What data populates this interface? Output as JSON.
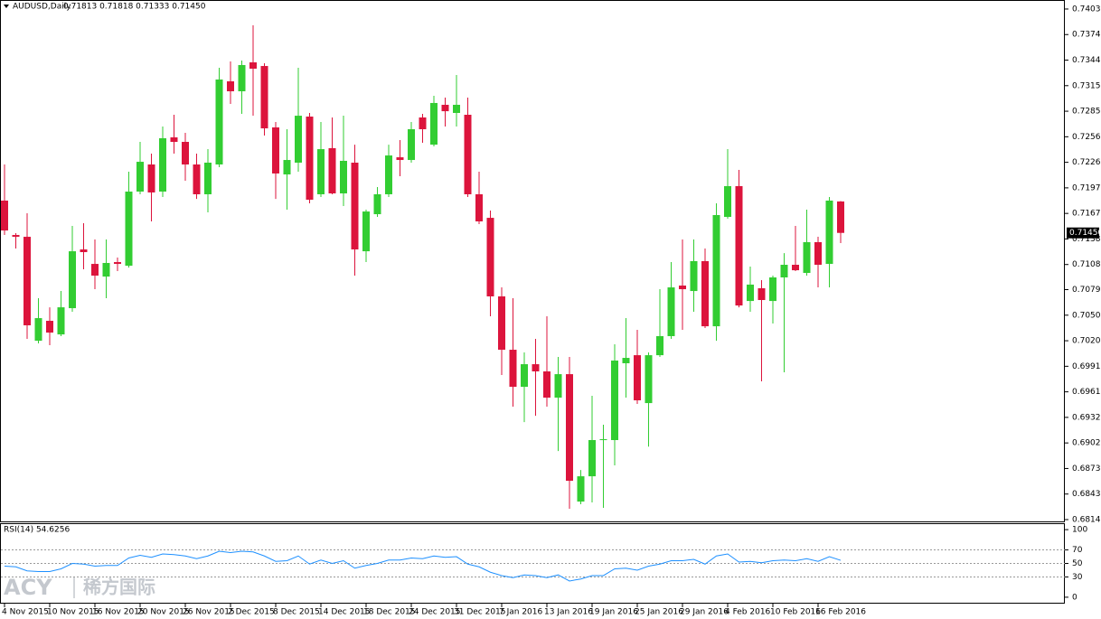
{
  "chart_data": [
    {
      "type": "candlestick",
      "title": "AUDUSD,Daily",
      "ohlc_text": "0.71813 0.71818 0.71333 0.71450",
      "categories": [
        "4 Nov 2015",
        null,
        null,
        null,
        "10 Nov 2015",
        null,
        null,
        null,
        "16 Nov 2015",
        null,
        null,
        null,
        "20 Nov 2015",
        null,
        null,
        null,
        "26 Nov 2015",
        null,
        null,
        null,
        "2 Dec 2015",
        null,
        null,
        null,
        "8 Dec 2015",
        null,
        null,
        null,
        "14 Dec 2015",
        null,
        null,
        null,
        "18 Dec 2015",
        null,
        null,
        null,
        "24 Dec 2015",
        null,
        null,
        null,
        "31 Dec 2015",
        null,
        null,
        null,
        "7 Jan 2016",
        null,
        null,
        null,
        "13 Jan 2016",
        null,
        null,
        null,
        "19 Jan 2016",
        null,
        null,
        null,
        "25 Jan 2016",
        null,
        null,
        null,
        "29 Jan 2016",
        null,
        null,
        null,
        "4 Feb 2016",
        null,
        null,
        null,
        "10 Feb 2016",
        null,
        null,
        null,
        "16 Feb 2016",
        null,
        null
      ],
      "open": [
        0.71823,
        0.71426,
        0.71405,
        0.70205,
        0.70435,
        0.70278,
        0.70581,
        0.71259,
        0.71092,
        0.70946,
        0.71113,
        0.71071,
        0.71927,
        0.7224,
        0.71927,
        0.72553,
        0.72501,
        0.7224,
        0.71896,
        0.7224,
        0.732,
        0.73085,
        0.73419,
        0.73377,
        0.72668,
        0.72125,
        0.72261,
        0.72793,
        0.71896,
        0.72428,
        0.71906,
        0.72261,
        0.71238,
        0.71666,
        0.71896,
        0.72323,
        0.72292,
        0.72783,
        0.72469,
        0.72929,
        0.72835,
        0.72814,
        0.71896,
        0.71624,
        0.70717,
        0.70101,
        0.69673,
        0.69934,
        0.69851,
        0.69548,
        0.69819,
        0.68348,
        0.6864,
        0.69058,
        0.69058,
        0.69945,
        0.70038,
        0.69485,
        0.70038,
        0.70258,
        0.70842,
        0.70779,
        0.71124,
        0.70372,
        0.71635,
        0.7199,
        0.70664,
        0.70811,
        0.70664,
        0.70936,
        0.71082,
        0.70988,
        0.71343,
        0.71092,
        0.71813
      ],
      "high": [
        0.7224,
        0.71447,
        0.71677,
        0.70696,
        0.70591,
        0.70779,
        0.71531,
        0.71562,
        0.71374,
        0.71374,
        0.71165,
        0.72157,
        0.72501,
        0.72365,
        0.72678,
        0.72814,
        0.72605,
        0.72365,
        0.72417,
        0.73356,
        0.73429,
        0.7344,
        0.73847,
        0.73409,
        0.7273,
        0.72647,
        0.73356,
        0.72835,
        0.7273,
        0.72783,
        0.72803,
        0.72469,
        0.71718,
        0.71979,
        0.72469,
        0.72522,
        0.7273,
        0.72824,
        0.73033,
        0.73012,
        0.73273,
        0.73012,
        0.72157,
        0.71708,
        0.70821,
        0.70696,
        0.7007,
        0.70226,
        0.70487,
        0.70018,
        0.70018,
        0.68713,
        0.69569,
        0.69235,
        0.70164,
        0.70466,
        0.70331,
        0.7007,
        0.708,
        0.71113,
        0.71374,
        0.71374,
        0.7127,
        0.71791,
        0.72417,
        0.72177,
        0.71061,
        0.70905,
        0.70957,
        0.71217,
        0.71531,
        0.71718,
        0.71405,
        0.71864,
        0.71818
      ],
      "low": [
        0.71426,
        0.7127,
        0.70226,
        0.70174,
        0.70153,
        0.70258,
        0.70539,
        0.7103,
        0.708,
        0.70696,
        0.71009,
        0.7105,
        0.71896,
        0.71583,
        0.71864,
        0.72365,
        0.72052,
        0.71843,
        0.71687,
        0.72209,
        0.72939,
        0.72824,
        0.72803,
        0.72574,
        0.71843,
        0.71718,
        0.72157,
        0.71791,
        0.71864,
        0.71896,
        0.7176,
        0.70957,
        0.71113,
        0.71635,
        0.71864,
        0.72104,
        0.72261,
        0.7249,
        0.72449,
        0.72678,
        0.72678,
        0.71864,
        0.71551,
        0.70487,
        0.69809,
        0.69444,
        0.69266,
        0.69339,
        0.69444,
        0.68931,
        0.68265,
        0.68317,
        0.68338,
        0.68275,
        0.68766,
        0.69548,
        0.69475,
        0.68983,
        0.70018,
        0.70226,
        0.70331,
        0.70539,
        0.70352,
        0.70205,
        0.71614,
        0.70591,
        0.70539,
        0.69736,
        0.70404,
        0.6984,
        0.71009,
        0.70957,
        0.70821,
        0.70821,
        0.71333
      ],
      "close": [
        0.71478,
        0.71405,
        0.70383,
        0.70466,
        0.70299,
        0.70591,
        0.71238,
        0.71228,
        0.70957,
        0.71103,
        0.71092,
        0.71927,
        0.72271,
        0.71917,
        0.72543,
        0.72501,
        0.7224,
        0.71896,
        0.72261,
        0.73221,
        0.73085,
        0.73388,
        0.73346,
        0.72657,
        0.72136,
        0.72292,
        0.72803,
        0.71833,
        0.72417,
        0.71906,
        0.72282,
        0.71259,
        0.71697,
        0.71896,
        0.72344,
        0.72292,
        0.72647,
        0.72647,
        0.7295,
        0.72855,
        0.72929,
        0.71896,
        0.71583,
        0.70717,
        0.70101,
        0.69673,
        0.69934,
        0.69851,
        0.69548,
        0.69819,
        0.68588,
        0.6864,
        0.69058,
        0.69068,
        0.69976,
        0.70007,
        0.69517,
        0.70038,
        0.70258,
        0.70821,
        0.708,
        0.71124,
        0.70372,
        0.71656,
        0.7199,
        0.70612,
        0.70853,
        0.70675,
        0.70936,
        0.71082,
        0.71019,
        0.71343,
        0.71082,
        0.71823,
        0.7145
      ],
      "up_color": "#32cd32",
      "down_color": "#dc143c",
      "ylim": [
        0.68119,
        0.74139
      ],
      "yticks": [
        0.74035,
        {
          "value": 0.7374,
          "label": "0.73740"
        },
        0.73445,
        {
          "value": 0.7315,
          "label": "0.73150"
        },
        0.72855,
        {
          "value": 0.7256,
          "label": "0.72560"
        },
        0.72265,
        {
          "value": 0.7197,
          "label": "0.71970"
        },
        0.71675,
        {
          "value": 0.7138,
          "label": "0.71380"
        },
        0.71085,
        0.70795,
        {
          "value": 0.705,
          "label": "0.70500"
        },
        0.70205,
        {
          "value": 0.6991,
          "label": "0.69910"
        },
        0.69615,
        {
          "value": 0.6932,
          "label": "0.69320"
        },
        0.69025,
        {
          "value": 0.6873,
          "label": "0.68730"
        },
        0.68435,
        {
          "value": 0.6814,
          "label": "0.68140"
        }
      ],
      "last_price": {
        "value": 0.7145,
        "label": "0.71450"
      }
    },
    {
      "type": "line",
      "title": "RSI(14) 54.6256",
      "color": "#1e90ff",
      "values": [
        46,
        45,
        39,
        38,
        38,
        42,
        50,
        49,
        46,
        47,
        47,
        58,
        62,
        59,
        64,
        63,
        61,
        57,
        61,
        68,
        66,
        68,
        67,
        61,
        53,
        54,
        61,
        49,
        55,
        50,
        54,
        43,
        47,
        50,
        55,
        55,
        58,
        57,
        61,
        59,
        60,
        49,
        45,
        37,
        32,
        29,
        33,
        32,
        29,
        33,
        24,
        27,
        32,
        32,
        42,
        43,
        40,
        46,
        49,
        54,
        54,
        56,
        49,
        61,
        64,
        52,
        53,
        51,
        54,
        55,
        54,
        57,
        53,
        60,
        54.6256
      ],
      "ylim": [
        -9.5,
        109.5
      ],
      "yticks": [
        100,
        70,
        50,
        30,
        0
      ],
      "levels": [
        70,
        50,
        30
      ]
    }
  ],
  "watermark": {
    "brand": "ACY",
    "cn": "稀方国际"
  }
}
